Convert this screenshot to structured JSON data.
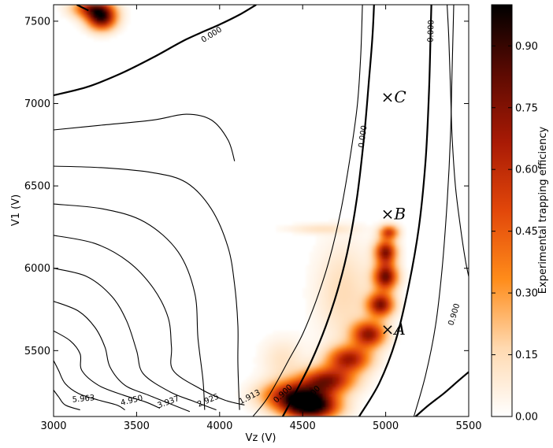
{
  "chart_data": {
    "type": "heatmap",
    "title": "",
    "xlabel": "Vz (V)",
    "ylabel": "V1 (V)",
    "xlim": [
      3000,
      5500
    ],
    "ylim": [
      5100,
      7600
    ],
    "x_ticks": [
      3000,
      3500,
      4000,
      4500,
      5000,
      5500
    ],
    "y_ticks": [
      5500,
      6000,
      6500,
      7000,
      7500
    ],
    "colorbar": {
      "label": "Experimental trapping efficiency",
      "range": [
        0.0,
        1.0
      ],
      "ticks": [
        "0.00",
        "0.15",
        "0.30",
        "0.45",
        "0.60",
        "0.75",
        "0.90"
      ],
      "tick_values": [
        0.0,
        0.15,
        0.3,
        0.45,
        0.6,
        0.75,
        0.9
      ],
      "colormap": [
        "#ffffff",
        "#ffd9b0",
        "#ff8c1a",
        "#e2470a",
        "#a81a05",
        "#5c0a02",
        "#000000"
      ]
    },
    "grid": false,
    "heat_blobs": [
      {
        "x": 4550,
        "y": 5160,
        "sx": 110,
        "sy": 55,
        "v": 1.0
      },
      {
        "x": 4450,
        "y": 5230,
        "sx": 130,
        "sy": 60,
        "v": 0.75
      },
      {
        "x": 4650,
        "y": 5320,
        "sx": 110,
        "sy": 55,
        "v": 0.7
      },
      {
        "x": 4780,
        "y": 5450,
        "sx": 90,
        "sy": 55,
        "v": 0.65
      },
      {
        "x": 4900,
        "y": 5600,
        "sx": 70,
        "sy": 55,
        "v": 0.7
      },
      {
        "x": 4970,
        "y": 5780,
        "sx": 55,
        "sy": 50,
        "v": 0.75
      },
      {
        "x": 5000,
        "y": 5950,
        "sx": 50,
        "sy": 55,
        "v": 0.8
      },
      {
        "x": 5000,
        "y": 6100,
        "sx": 45,
        "sy": 50,
        "v": 0.75
      },
      {
        "x": 5020,
        "y": 6220,
        "sx": 40,
        "sy": 30,
        "v": 0.55
      },
      {
        "x": 4600,
        "y": 6240,
        "sx": 140,
        "sy": 20,
        "v": 0.12
      },
      {
        "x": 4750,
        "y": 5850,
        "sx": 120,
        "sy": 220,
        "v": 0.15
      },
      {
        "x": 4380,
        "y": 5450,
        "sx": 90,
        "sy": 90,
        "v": 0.12
      },
      {
        "x": 3290,
        "y": 7520,
        "sx": 60,
        "sy": 50,
        "v": 0.85
      },
      {
        "x": 3230,
        "y": 7580,
        "sx": 80,
        "sy": 40,
        "v": 0.6
      }
    ],
    "contours": [
      {
        "label": "0.000",
        "bold": true,
        "points": [
          [
            3000,
            7050
          ],
          [
            3200,
            7100
          ],
          [
            3400,
            7180
          ],
          [
            3600,
            7280
          ],
          [
            3800,
            7390
          ],
          [
            4000,
            7480
          ],
          [
            4120,
            7540
          ],
          [
            4220,
            7600
          ]
        ]
      },
      {
        "label": "0.000",
        "bold": true,
        "points": [
          [
            3140,
            7600
          ],
          [
            3180,
            7580
          ],
          [
            3210,
            7565
          ]
        ]
      },
      {
        "label": "",
        "bold": false,
        "points": [
          [
            3000,
            6840
          ],
          [
            3300,
            6870
          ],
          [
            3600,
            6900
          ],
          [
            3800,
            6935
          ],
          [
            3950,
            6900
          ],
          [
            4050,
            6780
          ],
          [
            4090,
            6650
          ]
        ]
      },
      {
        "label": "",
        "bold": false,
        "points": [
          [
            3000,
            6620
          ],
          [
            3300,
            6610
          ],
          [
            3600,
            6580
          ],
          [
            3800,
            6520
          ],
          [
            3950,
            6360
          ],
          [
            4050,
            6130
          ],
          [
            4090,
            5900
          ],
          [
            4110,
            5650
          ],
          [
            4110,
            5420
          ],
          [
            4120,
            5140
          ]
        ]
      },
      {
        "label": "",
        "bold": false,
        "points": [
          [
            3000,
            6390
          ],
          [
            3300,
            6360
          ],
          [
            3550,
            6280
          ],
          [
            3750,
            6100
          ],
          [
            3850,
            5850
          ],
          [
            3870,
            5570
          ],
          [
            3900,
            5320
          ],
          [
            3910,
            5140
          ]
        ]
      },
      {
        "label": "1.913",
        "bold": false,
        "points": [
          [
            3000,
            6200
          ],
          [
            3250,
            6150
          ],
          [
            3450,
            6040
          ],
          [
            3600,
            5880
          ],
          [
            3690,
            5700
          ],
          [
            3710,
            5520
          ],
          [
            3720,
            5380
          ],
          [
            3880,
            5270
          ],
          [
            4030,
            5200
          ],
          [
            4150,
            5170
          ]
        ]
      },
      {
        "label": "2.925",
        "bold": false,
        "points": [
          [
            3000,
            6000
          ],
          [
            3200,
            5950
          ],
          [
            3350,
            5830
          ],
          [
            3440,
            5680
          ],
          [
            3500,
            5500
          ],
          [
            3540,
            5360
          ],
          [
            3700,
            5250
          ],
          [
            3850,
            5190
          ],
          [
            3980,
            5140
          ]
        ]
      },
      {
        "label": "3.937",
        "bold": false,
        "points": [
          [
            3000,
            5800
          ],
          [
            3150,
            5740
          ],
          [
            3250,
            5640
          ],
          [
            3310,
            5520
          ],
          [
            3340,
            5400
          ],
          [
            3430,
            5290
          ],
          [
            3570,
            5230
          ],
          [
            3720,
            5170
          ],
          [
            3820,
            5130
          ]
        ]
      },
      {
        "label": "4.950",
        "bold": false,
        "points": [
          [
            3000,
            5620
          ],
          [
            3100,
            5560
          ],
          [
            3160,
            5480
          ],
          [
            3170,
            5380
          ],
          [
            3270,
            5290
          ],
          [
            3420,
            5230
          ],
          [
            3550,
            5190
          ],
          [
            3640,
            5150
          ]
        ]
      },
      {
        "label": "5.963",
        "bold": false,
        "points": [
          [
            3000,
            5440
          ],
          [
            3030,
            5380
          ],
          [
            3070,
            5300
          ],
          [
            3150,
            5240
          ],
          [
            3270,
            5200
          ],
          [
            3380,
            5170
          ],
          [
            3430,
            5140
          ]
        ]
      },
      {
        "label": "",
        "bold": false,
        "points": [
          [
            3000,
            5260
          ],
          [
            3030,
            5220
          ],
          [
            3070,
            5170
          ],
          [
            3160,
            5140
          ]
        ]
      },
      {
        "label": "0.900",
        "bold": false,
        "points": [
          [
            4200,
            5100
          ],
          [
            4280,
            5200
          ],
          [
            4350,
            5320
          ],
          [
            4420,
            5450
          ],
          [
            4500,
            5600
          ],
          [
            4580,
            5800
          ],
          [
            4660,
            6050
          ],
          [
            4730,
            6350
          ],
          [
            4790,
            6700
          ],
          [
            4830,
            7000
          ],
          [
            4850,
            7300
          ],
          [
            4860,
            7600
          ]
        ]
      },
      {
        "label": "0.000",
        "bold": true,
        "points": [
          [
            4380,
            5100
          ],
          [
            4460,
            5250
          ],
          [
            4550,
            5430
          ],
          [
            4640,
            5650
          ],
          [
            4720,
            5900
          ],
          [
            4780,
            6150
          ],
          [
            4830,
            6450
          ],
          [
            4870,
            6800
          ],
          [
            4900,
            7150
          ],
          [
            4920,
            7400
          ],
          [
            4930,
            7600
          ]
        ]
      },
      {
        "label": "0.000",
        "bold": true,
        "points": [
          [
            4840,
            5100
          ],
          [
            4960,
            5300
          ],
          [
            5060,
            5560
          ],
          [
            5140,
            5900
          ],
          [
            5200,
            6250
          ],
          [
            5240,
            6650
          ],
          [
            5260,
            7050
          ],
          [
            5270,
            7400
          ],
          [
            5275,
            7600
          ]
        ]
      },
      {
        "label": "0.900",
        "bold": false,
        "points": [
          [
            5170,
            5100
          ],
          [
            5240,
            5350
          ],
          [
            5300,
            5650
          ],
          [
            5340,
            6000
          ],
          [
            5370,
            6400
          ],
          [
            5390,
            6800
          ],
          [
            5400,
            7200
          ],
          [
            5410,
            7600
          ]
        ]
      },
      {
        "label": "",
        "bold": false,
        "points": [
          [
            5370,
            7600
          ],
          [
            5380,
            7400
          ],
          [
            5390,
            7100
          ],
          [
            5400,
            6800
          ],
          [
            5420,
            6500
          ],
          [
            5450,
            6250
          ],
          [
            5480,
            6050
          ],
          [
            5500,
            5950
          ]
        ]
      },
      {
        "label": "",
        "bold": true,
        "points": [
          [
            5180,
            5100
          ],
          [
            5260,
            5170
          ],
          [
            5350,
            5240
          ],
          [
            5430,
            5310
          ],
          [
            5500,
            5370
          ]
        ]
      }
    ],
    "contour_labels": [
      {
        "text": "0.000",
        "x": 3950,
        "y": 7420,
        "angle": -32
      },
      {
        "text": "0.000",
        "x": 4860,
        "y": 6800,
        "angle": -82
      },
      {
        "text": "0.000",
        "x": 5270,
        "y": 7440,
        "angle": -88
      },
      {
        "text": "5.963",
        "x": 3180,
        "y": 5210,
        "angle": -5
      },
      {
        "text": "4.950",
        "x": 3470,
        "y": 5200,
        "angle": -14
      },
      {
        "text": "3.937",
        "x": 3690,
        "y": 5190,
        "angle": -20
      },
      {
        "text": "2.925",
        "x": 3930,
        "y": 5200,
        "angle": -23
      },
      {
        "text": "1.913",
        "x": 4180,
        "y": 5220,
        "angle": -27
      },
      {
        "text": "0.900",
        "x": 4380,
        "y": 5240,
        "angle": -44
      },
      {
        "text": "0.000",
        "x": 4550,
        "y": 5230,
        "angle": -48
      },
      {
        "text": "0.900",
        "x": 5410,
        "y": 5720,
        "angle": -73
      }
    ],
    "points": [
      {
        "label": "×A",
        "x": 5000,
        "y": 5630
      },
      {
        "label": "×B",
        "x": 5000,
        "y": 6330
      },
      {
        "label": "×C",
        "x": 5000,
        "y": 7040
      }
    ]
  }
}
